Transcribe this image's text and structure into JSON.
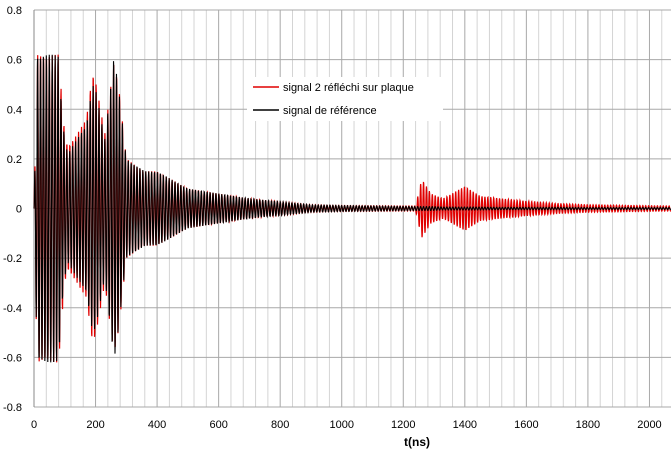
{
  "chart_data": {
    "type": "line",
    "title": "",
    "xlabel": "t(ns)",
    "ylabel": "",
    "xlim": [
      0,
      2070
    ],
    "ylim": [
      -0.8,
      0.8
    ],
    "x_ticks": [
      0,
      200,
      400,
      600,
      800,
      1000,
      1200,
      1400,
      1600,
      1800,
      2000
    ],
    "y_ticks": [
      -0.8,
      -0.6,
      -0.4,
      -0.2,
      0,
      0.2,
      0.4,
      0.6,
      0.8
    ],
    "y_tick_labels": [
      "-0.8",
      "-0.6",
      "-0.4",
      "-0.2",
      "0",
      "0.2",
      "0.4",
      "0.6",
      "0.8"
    ],
    "x_tick_labels": [
      "0",
      "200",
      "400",
      "600",
      "800",
      "1000",
      "1200",
      "1400",
      "1600",
      "1800",
      "2000"
    ],
    "grid": true,
    "legend_position": "top-center",
    "series": [
      {
        "name": "signal 2 réfléchi sur plaque",
        "color": "#e00000",
        "envelope": {
          "t": [
            0,
            10,
            20,
            60,
            80,
            90,
            100,
            110,
            140,
            170,
            190,
            200,
            230,
            260,
            275,
            300,
            360,
            400,
            500,
            700,
            900,
            1000,
            1240,
            1260,
            1290,
            1330,
            1400,
            1450,
            1520,
            1600,
            1700,
            1800,
            2070
          ],
          "amp": [
            0.0,
            0.62,
            0.62,
            0.62,
            0.62,
            0.45,
            0.3,
            0.25,
            0.3,
            0.36,
            0.55,
            0.52,
            0.3,
            0.6,
            0.5,
            0.2,
            0.15,
            0.15,
            0.08,
            0.04,
            0.015,
            0.012,
            0.01,
            0.12,
            0.06,
            0.04,
            0.09,
            0.05,
            0.04,
            0.03,
            0.02,
            0.015,
            0.01
          ]
        }
      },
      {
        "name": "signal de référence",
        "color": "#000000",
        "envelope": {
          "t": [
            0,
            10,
            20,
            60,
            80,
            90,
            100,
            110,
            140,
            170,
            190,
            200,
            230,
            260,
            275,
            300,
            360,
            400,
            500,
            700,
            900,
            1000,
            1240,
            1260,
            1290,
            1330,
            1400,
            1450,
            1520,
            1600,
            1700,
            1800,
            2070
          ],
          "amp": [
            0.0,
            0.62,
            0.62,
            0.62,
            0.62,
            0.4,
            0.28,
            0.22,
            0.28,
            0.34,
            0.5,
            0.48,
            0.28,
            0.62,
            0.48,
            0.2,
            0.15,
            0.15,
            0.08,
            0.04,
            0.015,
            0.012,
            0.008,
            0.008,
            0.008,
            0.006,
            0.006,
            0.006,
            0.005,
            0.005,
            0.005,
            0.004,
            0.004
          ]
        }
      }
    ]
  }
}
